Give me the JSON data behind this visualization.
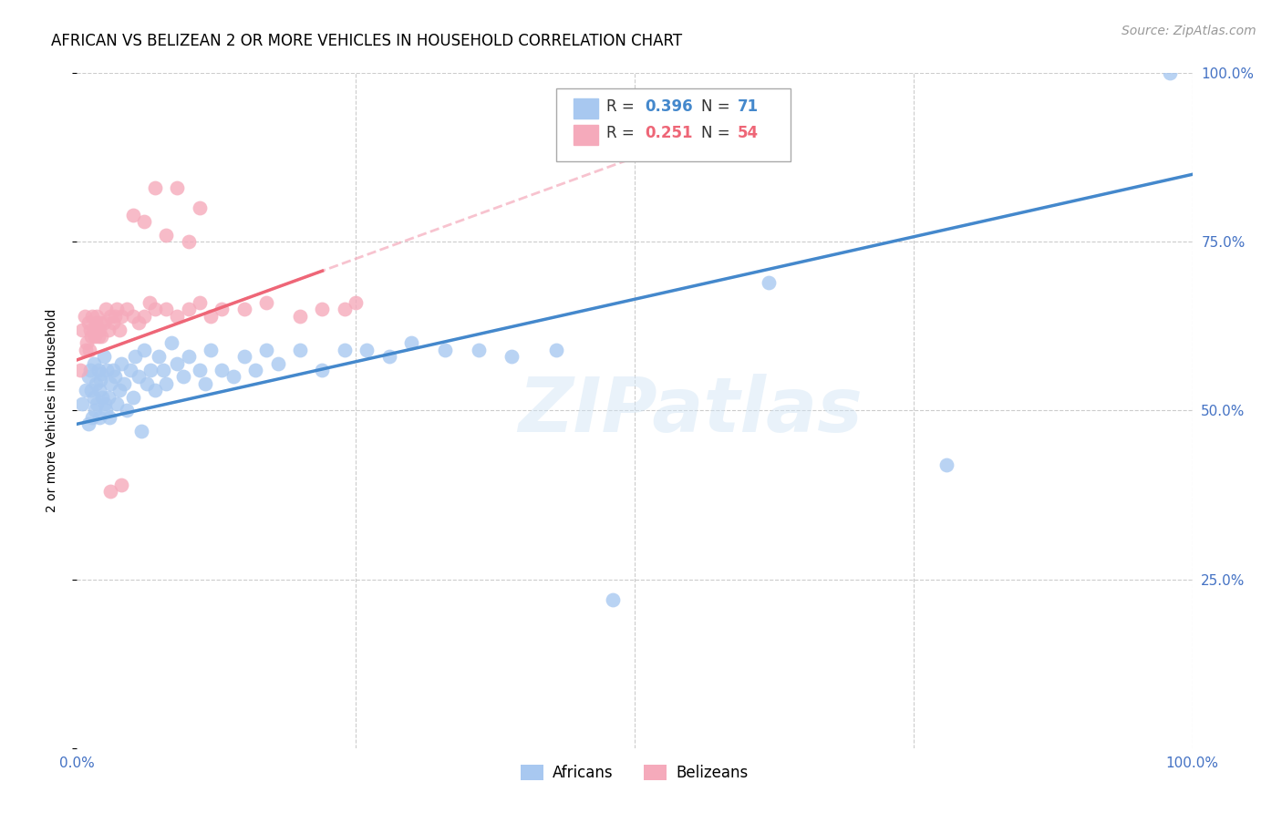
{
  "title": "AFRICAN VS BELIZEAN 2 OR MORE VEHICLES IN HOUSEHOLD CORRELATION CHART",
  "source": "Source: ZipAtlas.com",
  "ylabel": "2 or more Vehicles in Household",
  "xlim": [
    0,
    1.0
  ],
  "ylim": [
    0,
    1.0
  ],
  "background_color": "#ffffff",
  "grid_color": "#cccccc",
  "watermark": "ZIPatlas",
  "african_color": "#A8C8F0",
  "belizean_color": "#F5AABB",
  "african_line_color": "#4488CC",
  "belizean_line_color": "#EE6677",
  "belizean_dash_color": "#F5AABB",
  "title_fontsize": 12,
  "source_fontsize": 10,
  "label_fontsize": 10,
  "africans_x": [
    0.005,
    0.008,
    0.01,
    0.01,
    0.012,
    0.013,
    0.014,
    0.015,
    0.015,
    0.016,
    0.017,
    0.018,
    0.019,
    0.02,
    0.02,
    0.021,
    0.022,
    0.023,
    0.024,
    0.025,
    0.026,
    0.027,
    0.028,
    0.029,
    0.03,
    0.032,
    0.034,
    0.036,
    0.038,
    0.04,
    0.042,
    0.045,
    0.048,
    0.05,
    0.052,
    0.055,
    0.058,
    0.06,
    0.063,
    0.066,
    0.07,
    0.073,
    0.077,
    0.08,
    0.085,
    0.09,
    0.095,
    0.1,
    0.11,
    0.115,
    0.12,
    0.13,
    0.14,
    0.15,
    0.16,
    0.17,
    0.18,
    0.2,
    0.22,
    0.24,
    0.26,
    0.28,
    0.3,
    0.33,
    0.36,
    0.39,
    0.43,
    0.48,
    0.62,
    0.78,
    0.98
  ],
  "africans_y": [
    0.51,
    0.53,
    0.55,
    0.48,
    0.56,
    0.53,
    0.49,
    0.52,
    0.57,
    0.5,
    0.54,
    0.51,
    0.56,
    0.53,
    0.49,
    0.545,
    0.555,
    0.52,
    0.58,
    0.51,
    0.5,
    0.56,
    0.52,
    0.49,
    0.54,
    0.56,
    0.55,
    0.51,
    0.53,
    0.57,
    0.54,
    0.5,
    0.56,
    0.52,
    0.58,
    0.55,
    0.47,
    0.59,
    0.54,
    0.56,
    0.53,
    0.58,
    0.56,
    0.54,
    0.6,
    0.57,
    0.55,
    0.58,
    0.56,
    0.54,
    0.59,
    0.56,
    0.55,
    0.58,
    0.56,
    0.59,
    0.57,
    0.59,
    0.56,
    0.59,
    0.59,
    0.58,
    0.6,
    0.59,
    0.59,
    0.58,
    0.59,
    0.22,
    0.69,
    0.42,
    1.0
  ],
  "belizeans_x": [
    0.003,
    0.005,
    0.007,
    0.008,
    0.009,
    0.01,
    0.011,
    0.012,
    0.013,
    0.014,
    0.015,
    0.016,
    0.017,
    0.018,
    0.019,
    0.02,
    0.021,
    0.022,
    0.024,
    0.026,
    0.028,
    0.03,
    0.032,
    0.034,
    0.036,
    0.038,
    0.04,
    0.045,
    0.05,
    0.055,
    0.06,
    0.065,
    0.07,
    0.08,
    0.09,
    0.1,
    0.11,
    0.12,
    0.13,
    0.15,
    0.17,
    0.2,
    0.22,
    0.24,
    0.25,
    0.05,
    0.06,
    0.07,
    0.08,
    0.09,
    0.1,
    0.11,
    0.03,
    0.04
  ],
  "belizeans_y": [
    0.56,
    0.62,
    0.64,
    0.59,
    0.6,
    0.63,
    0.59,
    0.62,
    0.61,
    0.64,
    0.62,
    0.61,
    0.63,
    0.64,
    0.61,
    0.62,
    0.63,
    0.61,
    0.63,
    0.65,
    0.62,
    0.64,
    0.63,
    0.64,
    0.65,
    0.62,
    0.64,
    0.65,
    0.64,
    0.63,
    0.64,
    0.66,
    0.65,
    0.65,
    0.64,
    0.65,
    0.66,
    0.64,
    0.65,
    0.65,
    0.66,
    0.64,
    0.65,
    0.65,
    0.66,
    0.79,
    0.78,
    0.83,
    0.76,
    0.83,
    0.75,
    0.8,
    0.38,
    0.39
  ]
}
